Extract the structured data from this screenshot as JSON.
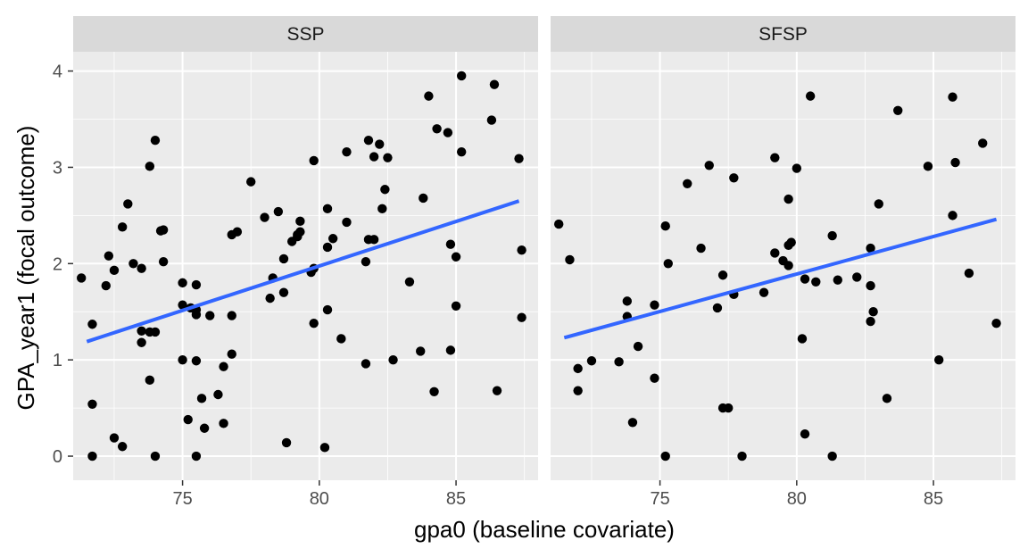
{
  "chart_data": {
    "type": "scatter",
    "xlabel": "gpa0 (baseline covariate)",
    "ylabel": "GPA_year1 (focal outcome)",
    "xlim": [
      71.0,
      88.0
    ],
    "ylim": [
      -0.25,
      4.2
    ],
    "x_ticks": [
      75,
      80,
      85
    ],
    "y_ticks": [
      0,
      1,
      2,
      3,
      4
    ],
    "grid": true,
    "colors": {
      "panel_bg": "#ebebeb",
      "strip_bg": "#d9d9d9",
      "grid": "#ffffff",
      "points": "#000000",
      "fit_line": "#3366ff"
    },
    "panels": [
      {
        "title": "SSP",
        "fit": {
          "x": [
            71.5,
            87.3
          ],
          "y": [
            1.19,
            2.65
          ]
        },
        "points": [
          [
            71.3,
            1.85
          ],
          [
            71.7,
            1.37
          ],
          [
            71.7,
            0.54
          ],
          [
            71.7,
            0.0
          ],
          [
            72.2,
            1.77
          ],
          [
            72.3,
            2.08
          ],
          [
            72.5,
            1.93
          ],
          [
            72.5,
            0.19
          ],
          [
            72.8,
            2.38
          ],
          [
            72.8,
            0.1
          ],
          [
            73.0,
            2.62
          ],
          [
            73.2,
            2.0
          ],
          [
            73.5,
            1.95
          ],
          [
            73.5,
            1.3
          ],
          [
            73.5,
            1.18
          ],
          [
            73.8,
            3.01
          ],
          [
            73.8,
            1.29
          ],
          [
            73.8,
            0.79
          ],
          [
            74.0,
            3.28
          ],
          [
            74.0,
            1.29
          ],
          [
            74.0,
            0.0
          ],
          [
            74.2,
            2.34
          ],
          [
            74.3,
            2.35
          ],
          [
            74.3,
            2.02
          ],
          [
            75.0,
            1.8
          ],
          [
            75.0,
            1.57
          ],
          [
            75.0,
            1.0
          ],
          [
            75.2,
            0.38
          ],
          [
            75.3,
            1.54
          ],
          [
            75.5,
            1.78
          ],
          [
            75.5,
            1.52
          ],
          [
            75.5,
            1.47
          ],
          [
            75.5,
            0.99
          ],
          [
            75.5,
            0.0
          ],
          [
            75.7,
            0.6
          ],
          [
            75.8,
            0.29
          ],
          [
            76.0,
            1.46
          ],
          [
            76.3,
            0.64
          ],
          [
            76.5,
            0.93
          ],
          [
            76.5,
            0.34
          ],
          [
            76.8,
            2.3
          ],
          [
            76.8,
            1.46
          ],
          [
            76.8,
            1.06
          ],
          [
            77.0,
            2.33
          ],
          [
            77.5,
            2.85
          ],
          [
            78.0,
            2.48
          ],
          [
            78.2,
            1.64
          ],
          [
            78.3,
            1.85
          ],
          [
            78.5,
            2.54
          ],
          [
            78.7,
            2.05
          ],
          [
            78.7,
            1.7
          ],
          [
            78.8,
            0.14
          ],
          [
            79.0,
            2.23
          ],
          [
            79.2,
            2.3
          ],
          [
            79.2,
            2.28
          ],
          [
            79.3,
            2.33
          ],
          [
            79.3,
            2.44
          ],
          [
            79.7,
            1.91
          ],
          [
            79.8,
            3.07
          ],
          [
            79.8,
            1.95
          ],
          [
            79.8,
            1.38
          ],
          [
            80.2,
            0.09
          ],
          [
            80.3,
            2.57
          ],
          [
            80.3,
            2.17
          ],
          [
            80.3,
            1.52
          ],
          [
            80.5,
            2.26
          ],
          [
            80.8,
            1.22
          ],
          [
            81.0,
            3.16
          ],
          [
            81.0,
            2.43
          ],
          [
            81.7,
            2.02
          ],
          [
            81.7,
            0.96
          ],
          [
            81.8,
            3.28
          ],
          [
            81.8,
            2.25
          ],
          [
            82.0,
            3.11
          ],
          [
            82.0,
            2.25
          ],
          [
            82.2,
            3.24
          ],
          [
            82.3,
            2.57
          ],
          [
            82.4,
            2.77
          ],
          [
            82.5,
            3.1
          ],
          [
            82.7,
            1.0
          ],
          [
            83.3,
            1.81
          ],
          [
            83.7,
            1.09
          ],
          [
            83.8,
            2.68
          ],
          [
            84.0,
            3.74
          ],
          [
            84.2,
            0.67
          ],
          [
            84.3,
            3.4
          ],
          [
            84.7,
            3.36
          ],
          [
            84.8,
            2.2
          ],
          [
            84.8,
            1.1
          ],
          [
            85.0,
            2.07
          ],
          [
            85.0,
            1.56
          ],
          [
            85.2,
            3.95
          ],
          [
            85.2,
            3.16
          ],
          [
            86.3,
            3.49
          ],
          [
            86.4,
            3.86
          ],
          [
            86.5,
            0.68
          ],
          [
            87.3,
            3.09
          ],
          [
            87.4,
            2.14
          ],
          [
            87.4,
            1.44
          ]
        ]
      },
      {
        "title": "SFSP",
        "fit": {
          "x": [
            71.5,
            87.3
          ],
          "y": [
            1.23,
            2.46
          ]
        },
        "points": [
          [
            71.3,
            2.41
          ],
          [
            71.7,
            2.04
          ],
          [
            72.0,
            0.91
          ],
          [
            72.0,
            0.68
          ],
          [
            72.5,
            0.99
          ],
          [
            73.5,
            0.98
          ],
          [
            73.8,
            1.45
          ],
          [
            73.8,
            1.61
          ],
          [
            74.0,
            0.35
          ],
          [
            74.2,
            1.14
          ],
          [
            74.8,
            1.57
          ],
          [
            74.8,
            0.81
          ],
          [
            75.2,
            2.39
          ],
          [
            75.2,
            0.0
          ],
          [
            75.3,
            2.0
          ],
          [
            76.0,
            2.83
          ],
          [
            76.5,
            2.16
          ],
          [
            76.8,
            3.02
          ],
          [
            77.1,
            1.54
          ],
          [
            77.3,
            1.88
          ],
          [
            77.3,
            0.5
          ],
          [
            77.5,
            0.5
          ],
          [
            77.7,
            2.89
          ],
          [
            77.7,
            1.68
          ],
          [
            78.0,
            0.0
          ],
          [
            78.8,
            1.7
          ],
          [
            79.2,
            2.11
          ],
          [
            79.2,
            3.1
          ],
          [
            79.5,
            2.03
          ],
          [
            79.7,
            2.67
          ],
          [
            79.7,
            2.19
          ],
          [
            79.7,
            1.98
          ],
          [
            79.8,
            2.22
          ],
          [
            80.0,
            2.99
          ],
          [
            80.2,
            1.22
          ],
          [
            80.3,
            0.23
          ],
          [
            80.3,
            1.84
          ],
          [
            80.5,
            3.74
          ],
          [
            80.7,
            1.81
          ],
          [
            81.3,
            2.29
          ],
          [
            81.3,
            0.0
          ],
          [
            81.5,
            1.83
          ],
          [
            82.2,
            1.86
          ],
          [
            82.7,
            1.77
          ],
          [
            82.7,
            1.4
          ],
          [
            82.7,
            2.16
          ],
          [
            82.8,
            1.5
          ],
          [
            83.0,
            2.62
          ],
          [
            83.3,
            0.6
          ],
          [
            83.7,
            3.59
          ],
          [
            84.8,
            3.01
          ],
          [
            85.2,
            1.0
          ],
          [
            85.7,
            3.73
          ],
          [
            85.7,
            2.5
          ],
          [
            85.8,
            3.05
          ],
          [
            86.3,
            1.9
          ],
          [
            86.8,
            3.25
          ],
          [
            87.3,
            1.38
          ]
        ]
      }
    ]
  }
}
